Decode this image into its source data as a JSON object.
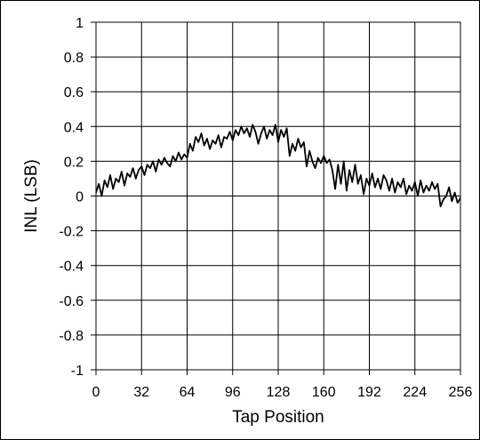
{
  "chart_data": {
    "type": "line",
    "xlabel": "Tap Position",
    "ylabel": "INL (LSB)",
    "xlim": [
      0,
      256
    ],
    "ylim": [
      -1,
      1
    ],
    "xticks": [
      0,
      32,
      64,
      96,
      128,
      160,
      192,
      224,
      256
    ],
    "yticks": [
      1,
      0.8,
      0.6,
      0.4,
      0.2,
      0,
      -0.2,
      -0.4,
      -0.6,
      -0.8,
      -1
    ],
    "xtick_labels": [
      "0",
      "32",
      "64",
      "96",
      "128",
      "160",
      "192",
      "224",
      "256"
    ],
    "ytick_labels": [
      "1",
      "0.8",
      "0.6",
      "0.4",
      "0.2",
      "0",
      "-0.2",
      "-0.4",
      "-0.6",
      "-0.8",
      "-1"
    ],
    "grid": true,
    "line_color": "#000000",
    "series": [
      {
        "x": [
          0,
          2,
          4,
          6,
          8,
          10,
          12,
          14,
          16,
          18,
          20,
          22,
          24,
          26,
          28,
          30,
          32,
          34,
          36,
          38,
          40,
          42,
          44,
          46,
          48,
          50,
          52,
          54,
          56,
          58,
          60,
          62,
          64,
          66,
          68,
          70,
          72,
          74,
          76,
          78,
          80,
          82,
          84,
          86,
          88,
          90,
          92,
          94,
          96,
          98,
          100,
          102,
          104,
          106,
          108,
          110,
          112,
          114,
          116,
          118,
          120,
          122,
          124,
          126,
          128,
          130,
          132,
          134,
          136,
          138,
          140,
          142,
          144,
          146,
          148,
          150,
          152,
          154,
          156,
          158,
          160,
          162,
          164,
          166,
          168,
          170,
          172,
          174,
          176,
          178,
          180,
          182,
          184,
          186,
          188,
          190,
          192,
          194,
          196,
          198,
          200,
          202,
          204,
          206,
          208,
          210,
          212,
          214,
          216,
          218,
          220,
          222,
          224,
          226,
          228,
          230,
          232,
          234,
          236,
          238,
          240,
          242,
          244,
          246,
          248,
          250,
          252,
          254,
          256
        ],
        "values": [
          0.02,
          0.07,
          0.0,
          0.09,
          0.05,
          0.12,
          0.04,
          0.1,
          0.08,
          0.14,
          0.06,
          0.13,
          0.11,
          0.16,
          0.1,
          0.15,
          0.17,
          0.12,
          0.18,
          0.16,
          0.2,
          0.14,
          0.21,
          0.18,
          0.22,
          0.19,
          0.17,
          0.23,
          0.2,
          0.25,
          0.21,
          0.24,
          0.22,
          0.3,
          0.26,
          0.34,
          0.31,
          0.36,
          0.29,
          0.33,
          0.27,
          0.32,
          0.3,
          0.35,
          0.28,
          0.34,
          0.33,
          0.37,
          0.32,
          0.38,
          0.35,
          0.4,
          0.36,
          0.39,
          0.34,
          0.41,
          0.37,
          0.3,
          0.36,
          0.4,
          0.33,
          0.38,
          0.35,
          0.41,
          0.31,
          0.38,
          0.34,
          0.39,
          0.23,
          0.3,
          0.26,
          0.33,
          0.28,
          0.31,
          0.17,
          0.26,
          0.2,
          0.16,
          0.22,
          0.19,
          0.23,
          0.19,
          0.21,
          0.15,
          0.04,
          0.18,
          0.07,
          0.2,
          0.03,
          0.15,
          0.08,
          0.18,
          0.07,
          0.12,
          0.01,
          0.1,
          0.06,
          0.13,
          0.05,
          0.1,
          0.04,
          0.12,
          0.09,
          0.03,
          0.1,
          0.02,
          0.08,
          0.05,
          0.1,
          0.01,
          0.06,
          0.03,
          0.08,
          0.0,
          0.09,
          0.02,
          0.06,
          0.03,
          0.08,
          0.04,
          0.07,
          -0.06,
          -0.02,
          0.0,
          0.05,
          -0.03,
          0.02,
          -0.04,
          -0.01
        ]
      }
    ]
  }
}
